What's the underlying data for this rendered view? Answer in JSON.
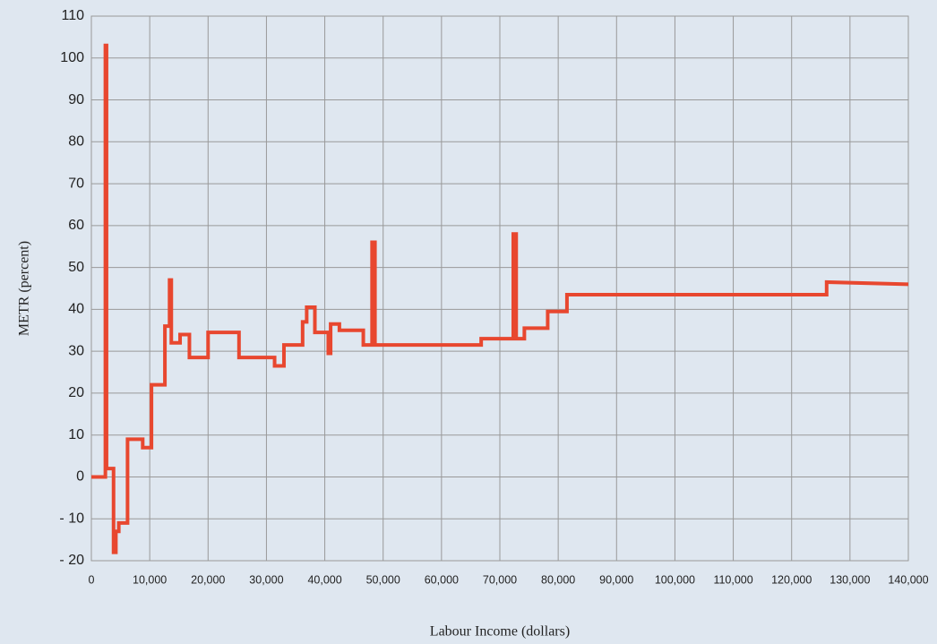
{
  "chart_data": {
    "type": "line",
    "xlabel": "Labour Income (dollars)",
    "ylabel": "METR (percent)",
    "x": [
      0,
      2400,
      2400,
      2600,
      2600,
      3800,
      3800,
      4200,
      4200,
      4700,
      4700,
      6200,
      6200,
      8800,
      8800,
      10300,
      10300,
      12600,
      12600,
      13400,
      13400,
      13700,
      13700,
      15200,
      15200,
      16800,
      16800,
      20000,
      20000,
      25300,
      25300,
      31400,
      31400,
      33000,
      33000,
      36200,
      36200,
      36900,
      36900,
      38300,
      38300,
      40600,
      40600,
      41000,
      41000,
      42500,
      42500,
      46600,
      46600,
      48100,
      48100,
      48600,
      48600,
      66800,
      66800,
      72300,
      72300,
      72800,
      72800,
      74200,
      74200,
      78200,
      78200,
      81500,
      81500,
      126000,
      126000,
      140000
    ],
    "series": [
      {
        "color": "#e8472f",
        "values": [
          0,
          0,
          103,
          103,
          2,
          2,
          -18,
          -18,
          -13,
          -13,
          -11,
          -11,
          9,
          9,
          7,
          7,
          22,
          22,
          36,
          36,
          47,
          47,
          32,
          32,
          34,
          34,
          28.5,
          28.5,
          34.5,
          34.5,
          28.5,
          28.5,
          26.5,
          26.5,
          31.5,
          31.5,
          37,
          37,
          40.5,
          40.5,
          34.5,
          34.5,
          29.5,
          29.5,
          36.5,
          36.5,
          35,
          35,
          31.5,
          31.5,
          56,
          56,
          31.5,
          31.5,
          33,
          33,
          58,
          58,
          33,
          33,
          35.5,
          35.5,
          39.5,
          39.5,
          43.5,
          43.5,
          46.5,
          46
        ]
      }
    ],
    "xlim": [
      0,
      140000
    ],
    "xticks": [
      0,
      {
        "value": 10000,
        "label": "10,000"
      },
      {
        "value": 20000,
        "label": "20,000"
      },
      {
        "value": 30000,
        "label": "30,000"
      },
      {
        "value": 40000,
        "label": "40,000"
      },
      {
        "value": 50000,
        "label": "50,000"
      },
      {
        "value": 60000,
        "label": "60,000"
      },
      {
        "value": 70000,
        "label": "70,000"
      },
      {
        "value": 80000,
        "label": "80,000"
      },
      {
        "value": 90000,
        "label": "90,000"
      },
      {
        "value": 100000,
        "label": "100,000"
      },
      {
        "value": 110000,
        "label": "110,000"
      },
      {
        "value": 120000,
        "label": "120,000"
      },
      {
        "value": 130000,
        "label": "130,000"
      },
      {
        "value": 140000,
        "label": "140,000"
      }
    ],
    "ylim": [
      -20,
      110
    ],
    "yticks": [
      {
        "value": -20,
        "label": "- 20"
      },
      {
        "value": -10,
        "label": "- 10"
      },
      0,
      10,
      20,
      30,
      40,
      50,
      60,
      70,
      80,
      90,
      100,
      110
    ],
    "grid": true
  }
}
